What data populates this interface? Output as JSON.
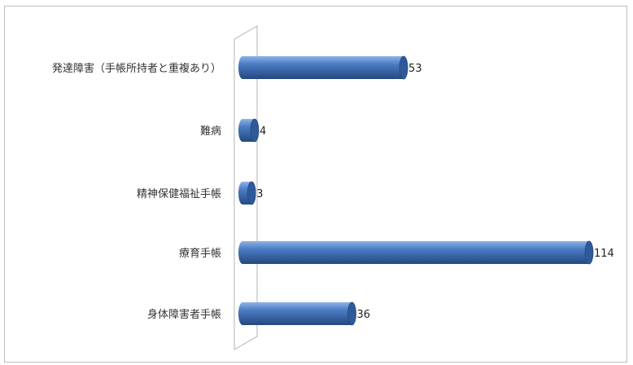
{
  "chart_data": {
    "type": "bar",
    "orientation": "horizontal",
    "style": "3d-cylinder",
    "categories": [
      "発達障害（手帳所持者と重複あり）",
      "難病",
      "精神保健福祉手帳",
      "療育手帳",
      "身体障害者手帳"
    ],
    "values": [
      53,
      4,
      3,
      114,
      36
    ],
    "data_labels": [
      "53",
      "4",
      "3",
      "114",
      "36"
    ],
    "title": "",
    "xlabel": "",
    "ylabel": "",
    "xlim": [
      0,
      114
    ],
    "grid": false,
    "legend": "none",
    "colors": {
      "bar_main": "#4a7cc4",
      "bar_light": "#8fb2e6",
      "bar_dark": "#24487f",
      "bar_end": "#2f5a9a",
      "wall": "#c0c0c0"
    }
  }
}
